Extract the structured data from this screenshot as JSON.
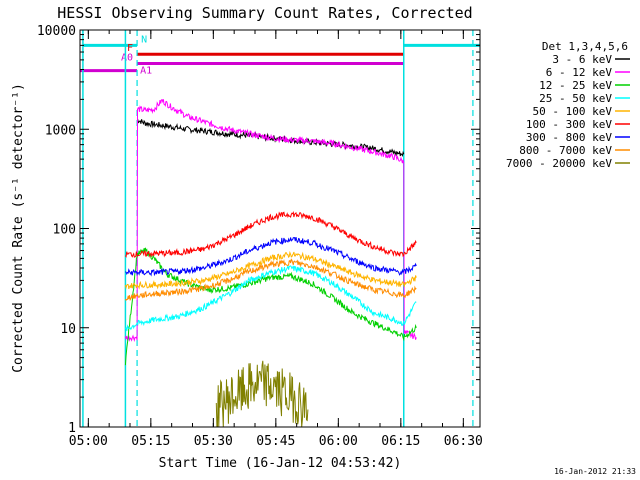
{
  "chart_data": {
    "type": "line",
    "title": "HESSI Observing Summary Count Rates, Corrected",
    "xlabel": "Start Time (16-Jan-12 04:53:42)",
    "ylabel": "Corrected Count Rate (s⁻¹ detector⁻¹)",
    "yscale": "log",
    "xlim_minutes": [
      4.3,
      100.3
    ],
    "ylim": [
      1,
      10000
    ],
    "x_ticks": [
      {
        "m": 6.3,
        "label": "05:00"
      },
      {
        "m": 21.3,
        "label": "05:15"
      },
      {
        "m": 36.3,
        "label": "05:30"
      },
      {
        "m": 51.3,
        "label": "05:45"
      },
      {
        "m": 66.3,
        "label": "06:00"
      },
      {
        "m": 81.3,
        "label": "06:15"
      },
      {
        "m": 96.3,
        "label": "06:30"
      }
    ],
    "y_ticks": [
      {
        "v": 1,
        "label": "1"
      },
      {
        "v": 10,
        "label": "10"
      },
      {
        "v": 100,
        "label": "100"
      },
      {
        "v": 1000,
        "label": "1000"
      },
      {
        "v": 10000,
        "label": "10000"
      }
    ],
    "legend": {
      "placement": "right",
      "title": "Det 1,3,4,5,6",
      "entries": [
        {
          "label": "3 - 6 keV",
          "color": "#000000"
        },
        {
          "label": "6 - 12 keV",
          "color": "#ff00ff"
        },
        {
          "label": "12 - 25 keV",
          "color": "#00d000"
        },
        {
          "label": "25 - 50 keV",
          "color": "#00ffff"
        },
        {
          "label": "50 - 100 keV",
          "color": "#ffb400"
        },
        {
          "label": "100 - 300 keV",
          "color": "#ff0000"
        },
        {
          "label": "300 - 800 keV",
          "color": "#0000ff"
        },
        {
          "label": "800 - 7000 keV",
          "color": "#ff8c00"
        },
        {
          "label": "7000 - 20000 keV",
          "color": "#808000"
        }
      ]
    },
    "flag_bars": [
      {
        "label": "N",
        "color": "#00e0e0",
        "segments": [
          [
            5,
            18
          ],
          [
            82,
            100.3
          ]
        ],
        "level": 7000
      },
      {
        "label": "F",
        "color": "#e00000",
        "segments": [
          [
            18,
            82
          ]
        ],
        "level": 5700
      },
      {
        "label": "A0",
        "color": "#d000d0",
        "segments": [
          [
            18,
            82
          ]
        ],
        "level": 4600
      },
      {
        "label": "A1",
        "color": "#d000d0",
        "segments": [
          [
            4.3,
            18
          ]
        ],
        "level": 3900
      }
    ],
    "night_markers": {
      "color": "#00e0e0",
      "solid_minutes": [
        5.0,
        15.2,
        82.0
      ],
      "dashed_minutes": [
        18.0,
        98.6
      ]
    },
    "series": [
      {
        "name": "3 - 6 keV",
        "color": "#000000",
        "x": [
          18,
          20,
          25,
          30,
          35,
          40,
          45,
          50,
          55,
          60,
          65,
          70,
          75,
          80,
          82
        ],
        "y": [
          1250,
          1150,
          1080,
          1000,
          950,
          900,
          860,
          820,
          780,
          740,
          710,
          680,
          640,
          580,
          560
        ]
      },
      {
        "name": "6 - 12 keV",
        "color": "#ff00ff",
        "x": [
          15.2,
          18,
          18.1,
          20,
          22,
          24,
          26,
          30,
          35,
          40,
          45,
          50,
          55,
          60,
          65,
          70,
          75,
          80,
          82,
          82.1,
          85
        ],
        "y": [
          8,
          8,
          1600,
          1550,
          1580,
          1950,
          1700,
          1350,
          1150,
          1000,
          900,
          820,
          780,
          760,
          720,
          650,
          590,
          520,
          470,
          9,
          8
        ]
      },
      {
        "name": "12 - 25 keV",
        "color": "#00d000",
        "x": [
          15.2,
          18,
          20,
          22,
          25,
          30,
          35,
          40,
          45,
          50,
          55,
          60,
          65,
          70,
          75,
          80,
          82,
          85
        ],
        "y": [
          4.5,
          55,
          60,
          50,
          35,
          28,
          24,
          25,
          28,
          32,
          33,
          28,
          20,
          14,
          11,
          9,
          8,
          10
        ]
      },
      {
        "name": "25 - 50 keV",
        "color": "#00ffff",
        "x": [
          15.2,
          18,
          22,
          28,
          34,
          40,
          45,
          50,
          55,
          60,
          65,
          70,
          75,
          80,
          82,
          85
        ],
        "y": [
          9.5,
          11,
          12,
          13,
          16,
          22,
          30,
          36,
          40,
          36,
          28,
          20,
          14,
          12,
          11,
          18
        ]
      },
      {
        "name": "50 - 100 keV",
        "color": "#ffb400",
        "x": [
          15.2,
          18,
          22,
          28,
          34,
          40,
          45,
          50,
          55,
          60,
          65,
          70,
          75,
          80,
          82,
          85
        ],
        "y": [
          26,
          27,
          27,
          28,
          30,
          35,
          42,
          50,
          55,
          50,
          42,
          35,
          30,
          28,
          27,
          32
        ]
      },
      {
        "name": "100 - 300 keV",
        "color": "#ff0000",
        "x": [
          15.2,
          18,
          22,
          28,
          34,
          40,
          45,
          50,
          55,
          60,
          65,
          70,
          75,
          80,
          82,
          85
        ],
        "y": [
          55,
          55,
          56,
          57,
          62,
          80,
          105,
          130,
          140,
          130,
          105,
          80,
          65,
          56,
          55,
          72
        ]
      },
      {
        "name": "300 - 800 keV",
        "color": "#0000ff",
        "x": [
          15.2,
          18,
          22,
          28,
          34,
          40,
          45,
          50,
          55,
          60,
          65,
          70,
          75,
          80,
          82,
          85
        ],
        "y": [
          36,
          36,
          36,
          37,
          40,
          48,
          60,
          72,
          78,
          72,
          60,
          48,
          40,
          37,
          36,
          42
        ]
      },
      {
        "name": "800 - 7000 keV",
        "color": "#ff8c00",
        "x": [
          15.2,
          18,
          22,
          28,
          34,
          40,
          45,
          50,
          55,
          60,
          65,
          70,
          75,
          80,
          82,
          85
        ],
        "y": [
          20,
          21,
          22,
          23,
          25,
          30,
          37,
          43,
          46,
          42,
          35,
          28,
          24,
          22,
          21,
          25
        ]
      },
      {
        "name": "7000 - 20000 keV",
        "color": "#808000",
        "x": [
          37,
          39,
          41,
          43,
          45,
          47,
          49,
          51,
          53,
          55,
          57,
          59
        ],
        "y": [
          1.5,
          1.8,
          2.0,
          2.2,
          2.5,
          2.7,
          2.7,
          2.5,
          2.2,
          2.0,
          1.8,
          1.5
        ]
      }
    ]
  },
  "footer": {
    "timestamp": "16-Jan-2012 21:33"
  }
}
